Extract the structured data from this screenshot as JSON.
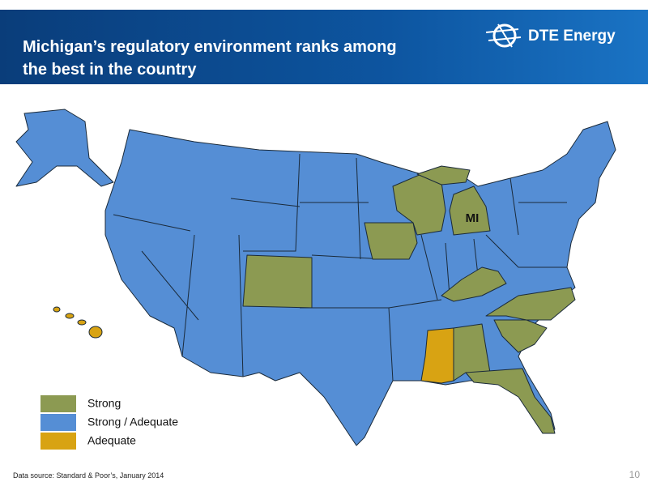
{
  "header": {
    "title_lines": [
      "Michigan’s regulatory environment ranks among",
      "the best in the country"
    ],
    "logo": "DTE Energy"
  },
  "map": {
    "state_label": "MI",
    "legend": [
      {
        "label": "Strong",
        "color": "#8c9a52"
      },
      {
        "label": "Strong / Adequate",
        "color": "#558ed5"
      },
      {
        "label": "Adequate",
        "color": "#d8a313"
      }
    ]
  },
  "footer": {
    "source": "Data source: Standard & Poor’s, January 2014",
    "page": 10
  }
}
